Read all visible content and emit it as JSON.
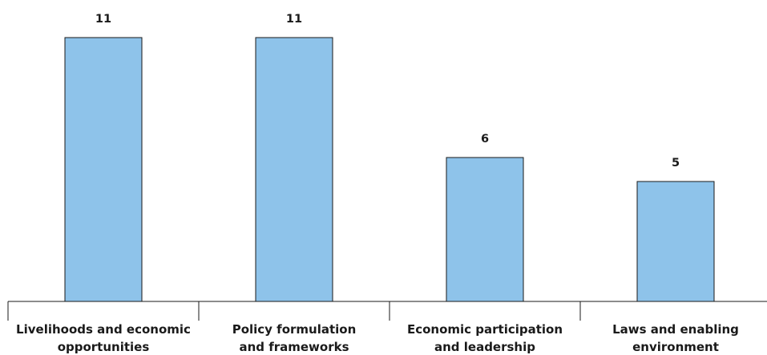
{
  "chart_data": {
    "type": "bar",
    "categories": [
      [
        "Livelihoods and economic",
        "opportunities"
      ],
      [
        "Policy formulation",
        "and frameworks"
      ],
      [
        "Economic participation",
        "and leadership"
      ],
      [
        "Laws and enabling",
        "environment"
      ]
    ],
    "values": [
      11,
      11,
      6,
      5
    ],
    "title": "",
    "xlabel": "",
    "ylabel": "",
    "ylim": [
      0,
      11
    ],
    "grid": false,
    "bar_color": "#8ec3ea",
    "edge_color": "#1a1a1a"
  }
}
